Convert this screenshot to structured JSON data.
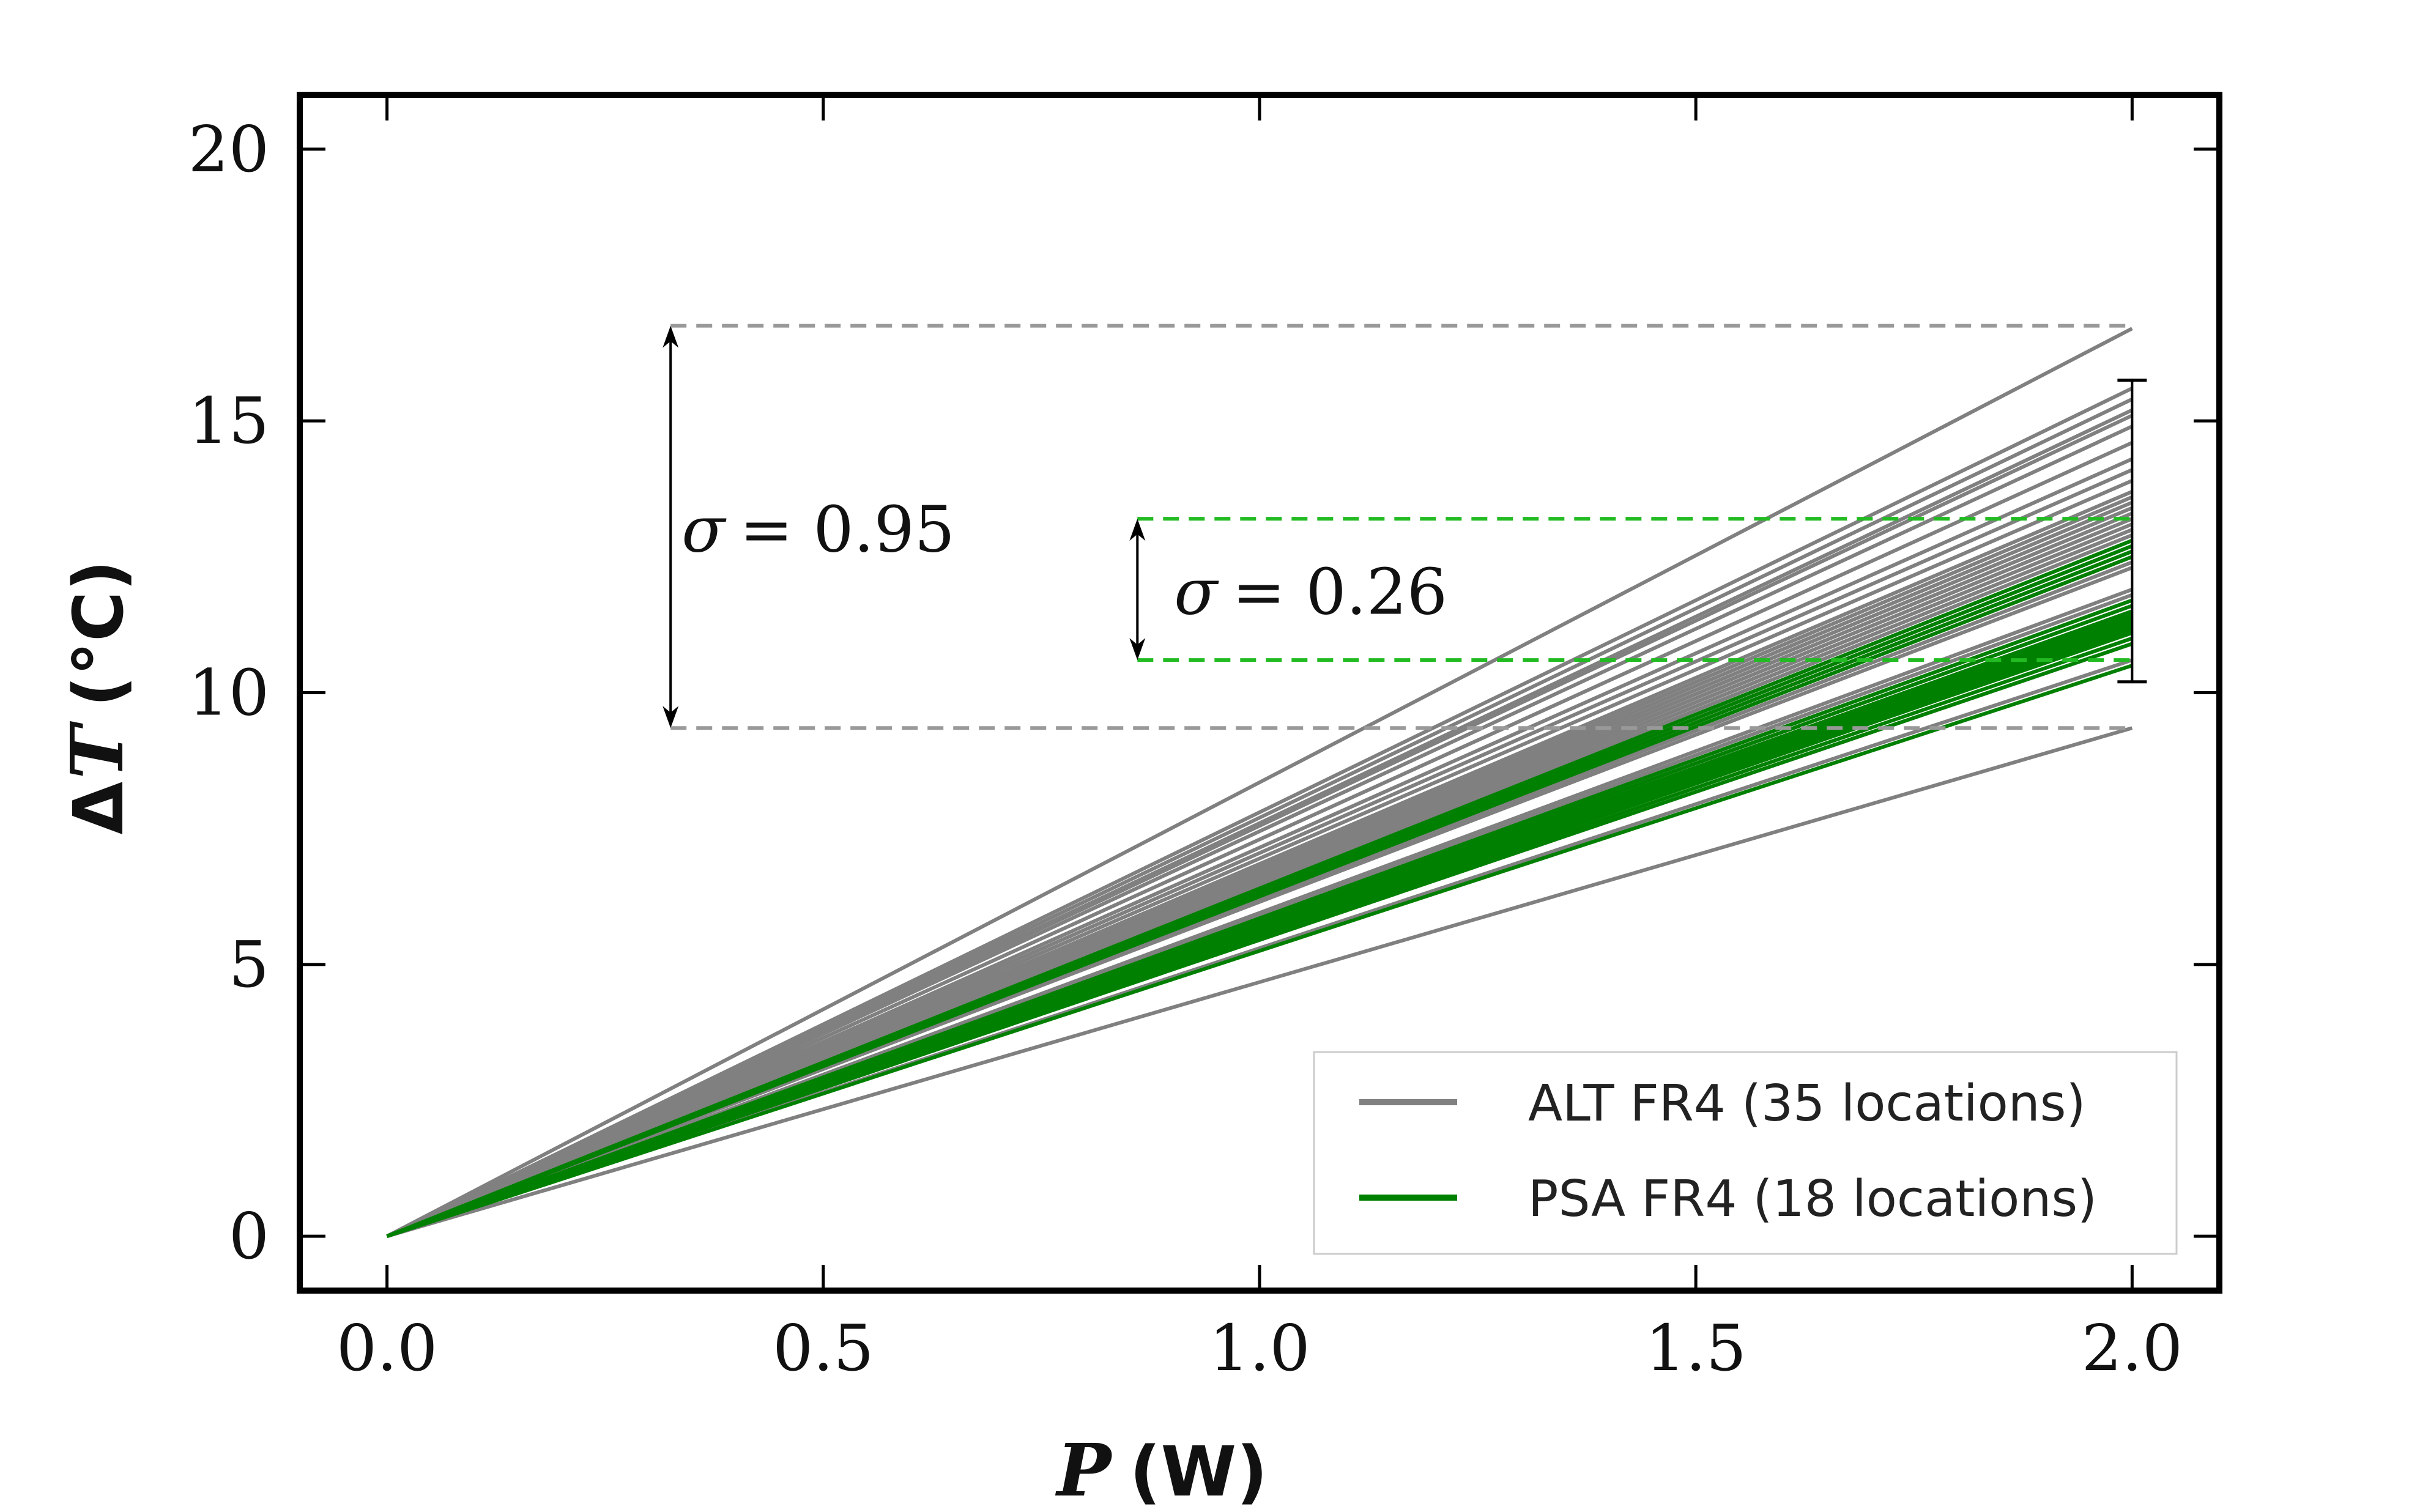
{
  "chart_data": {
    "type": "line",
    "title": "",
    "xlabel": {
      "var": "P",
      "unit": "(W)"
    },
    "ylabel": {
      "prefix": "Δ",
      "var": "T",
      "unit": "(°C)"
    },
    "xlim": [
      -0.1,
      2.1
    ],
    "ylim": [
      -1.0,
      21.0
    ],
    "xticks": [
      0.0,
      0.5,
      1.0,
      1.5,
      2.0
    ],
    "xtick_labels": [
      "0.0",
      "0.5",
      "1.0",
      "1.5",
      "2.0"
    ],
    "yticks": [
      0,
      5,
      10,
      15,
      20
    ],
    "ytick_labels": [
      "0",
      "5",
      "10",
      "15",
      "20"
    ],
    "grid": false,
    "legend_position": "lower-right",
    "colors": {
      "alt": "#808080",
      "psa": "#008000",
      "alt_dashed": "#999999",
      "psa_dashed": "#22bb22",
      "axes": "#000000"
    },
    "series": [
      {
        "name": "ALT FR4 (35 locations)",
        "color": "#808080",
        "x": [
          0.0,
          2.0
        ],
        "end_values_at_2W": [
          16.7,
          15.6,
          15.4,
          15.2,
          15.1,
          14.9,
          14.6,
          14.3,
          14.1,
          13.9,
          13.7,
          13.6,
          13.5,
          13.4,
          13.3,
          13.2,
          13.1,
          13.0,
          12.9,
          12.8,
          12.7,
          12.6,
          12.5,
          12.4,
          12.3,
          11.9,
          11.8,
          11.7,
          11.6,
          11.5,
          11.4,
          11.2,
          10.9,
          10.6,
          9.35
        ]
      },
      {
        "name": "PSA FR4 (18 locations)",
        "color": "#008000",
        "x": [
          0.0,
          2.0
        ],
        "end_values_at_2W": [
          12.8,
          12.7,
          12.6,
          12.5,
          11.7,
          11.6,
          11.5,
          11.45,
          11.4,
          11.35,
          11.3,
          11.25,
          11.2,
          11.15,
          11.1,
          11.0,
          10.9,
          10.5
        ]
      }
    ],
    "annotations": [
      {
        "label_symbol": "σ",
        "label_value": "= 0.95",
        "series": "ALT FR4 (35 locations)",
        "x_arrow": 0.325,
        "y_top": 16.75,
        "y_bottom": 9.35,
        "x_line_end": 2.0
      },
      {
        "label_symbol": "σ",
        "label_value": "= 0.26",
        "series": "PSA FR4 (18 locations)",
        "x_arrow": 0.86,
        "y_top": 13.2,
        "y_bottom": 10.6,
        "x_line_end": 2.0
      }
    ],
    "error_bar_at_2W": {
      "x": 2.0,
      "y_top": 15.75,
      "y_bottom": 10.2
    }
  }
}
